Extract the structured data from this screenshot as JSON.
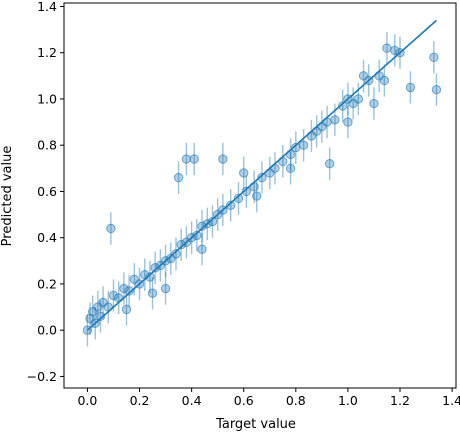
{
  "chart_data": {
    "type": "scatter",
    "title": "",
    "xlabel": "Target value",
    "ylabel": "Predicted value",
    "xlim": [
      -0.09,
      1.415
    ],
    "ylim": [
      -0.25,
      1.415
    ],
    "xticks": [
      0.0,
      0.2,
      0.4,
      0.6,
      0.8,
      1.0,
      1.2,
      1.4
    ],
    "xtick_labels": [
      "0.0",
      "0.2",
      "0.4",
      "0.6",
      "0.8",
      "1.0",
      "1.2",
      "1.4"
    ],
    "yticks": [
      -0.2,
      0.0,
      0.2,
      0.4,
      0.6,
      0.8,
      1.0,
      1.2,
      1.4
    ],
    "ytick_labels": [
      "−0.2",
      "0.0",
      "0.2",
      "0.4",
      "0.6",
      "0.8",
      "1.0",
      "1.2",
      "1.4"
    ],
    "grid": false,
    "colors": {
      "points": "#1f77b4",
      "line": "#1f77b4",
      "frame": "#000000"
    },
    "fit_line": {
      "x": [
        0.0,
        1.34
      ],
      "y": [
        0.0,
        1.34
      ]
    },
    "series": [
      {
        "x": [
          0.0,
          0.01,
          0.02,
          0.03,
          0.04,
          0.05,
          0.06,
          0.08,
          0.1,
          0.12,
          0.14,
          0.16,
          0.18,
          0.2,
          0.22,
          0.24,
          0.26,
          0.28,
          0.3,
          0.32,
          0.34,
          0.36,
          0.38,
          0.4,
          0.42,
          0.44,
          0.46,
          0.48,
          0.5,
          0.52,
          0.55,
          0.58,
          0.61,
          0.64,
          0.67,
          0.7,
          0.72,
          0.75,
          0.78,
          0.8,
          0.83,
          0.86,
          0.88,
          0.9,
          0.92,
          0.95,
          0.98,
          1.0,
          1.02,
          1.04,
          1.06,
          1.08,
          1.1,
          1.12,
          1.14,
          1.15,
          1.18,
          1.2,
          1.24,
          1.33,
          1.34,
          0.38,
          0.41,
          0.52,
          0.35,
          0.6,
          0.09,
          0.15,
          0.25,
          0.3,
          0.44,
          0.65,
          0.78,
          0.93,
          1.0
        ],
        "y": [
          0.0,
          0.05,
          0.08,
          0.03,
          0.1,
          0.06,
          0.12,
          0.1,
          0.15,
          0.14,
          0.18,
          0.17,
          0.22,
          0.2,
          0.24,
          0.23,
          0.27,
          0.28,
          0.3,
          0.31,
          0.33,
          0.37,
          0.38,
          0.4,
          0.41,
          0.45,
          0.46,
          0.47,
          0.5,
          0.52,
          0.54,
          0.57,
          0.6,
          0.62,
          0.66,
          0.68,
          0.7,
          0.73,
          0.76,
          0.79,
          0.8,
          0.84,
          0.86,
          0.88,
          0.9,
          0.91,
          0.97,
          1.0,
          0.98,
          1.0,
          1.1,
          1.08,
          0.98,
          1.1,
          1.08,
          1.22,
          1.21,
          1.2,
          1.05,
          1.18,
          1.04,
          0.74,
          0.74,
          0.74,
          0.66,
          0.68,
          0.44,
          0.09,
          0.16,
          0.18,
          0.35,
          0.58,
          0.7,
          0.72,
          0.9
        ],
        "y_err": [
          0.07,
          0.07,
          0.07,
          0.07,
          0.07,
          0.07,
          0.07,
          0.07,
          0.07,
          0.07,
          0.07,
          0.07,
          0.07,
          0.07,
          0.07,
          0.07,
          0.07,
          0.07,
          0.07,
          0.07,
          0.07,
          0.07,
          0.07,
          0.07,
          0.07,
          0.07,
          0.07,
          0.07,
          0.07,
          0.07,
          0.07,
          0.07,
          0.07,
          0.07,
          0.07,
          0.07,
          0.07,
          0.07,
          0.07,
          0.07,
          0.07,
          0.07,
          0.07,
          0.07,
          0.07,
          0.07,
          0.07,
          0.07,
          0.07,
          0.07,
          0.07,
          0.07,
          0.07,
          0.07,
          0.07,
          0.07,
          0.07,
          0.07,
          0.07,
          0.07,
          0.07,
          0.07,
          0.07,
          0.07,
          0.07,
          0.07,
          0.07,
          0.07,
          0.07,
          0.07,
          0.07,
          0.07,
          0.07,
          0.07,
          0.07
        ]
      }
    ]
  }
}
